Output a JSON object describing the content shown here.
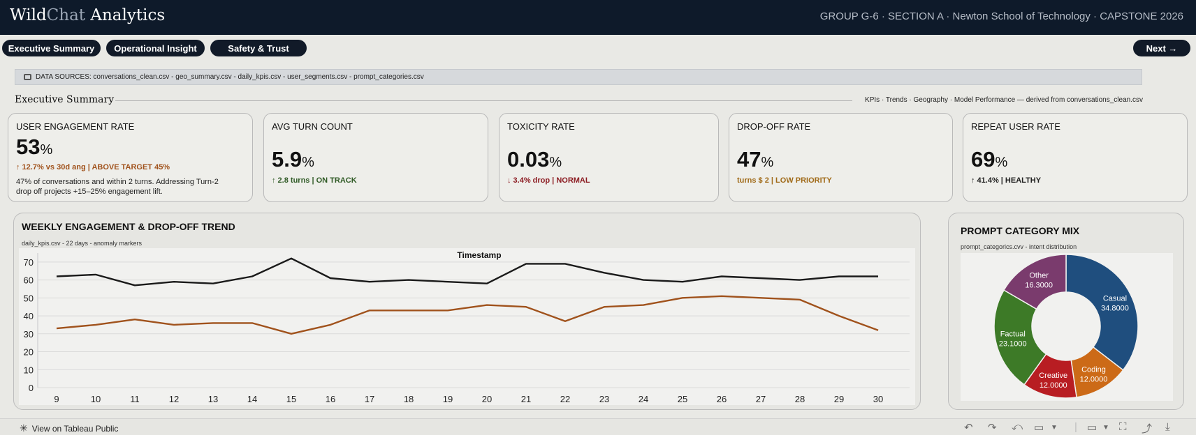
{
  "header": {
    "brand_part1": "Wild",
    "brand_part2": "Chat",
    "brand_part3": " Analytics",
    "meta": "GROUP G-6 · SECTION A · Newton School of Technology · CAPSTONE 2026"
  },
  "nav": {
    "tabs": [
      "Executive Summary",
      "Operational Insight",
      "Safety & Trust"
    ],
    "next_label": "Next →"
  },
  "sources": {
    "text": "DATA SOURCES: conversations_clean.csv - geo_summary.csv - daily_kpis.csv - user_segments.csv - prompt_categories.csv"
  },
  "section": {
    "title": "Executive Summary",
    "subtitle": "KPIs · Trends · Geography · Model Performance — derived from conversations_clean.csv"
  },
  "kpis": [
    {
      "title": "USER ENGAGEMENT RATE",
      "value": "53",
      "unit": "%",
      "delta": "↑ 12.7% vs 30d ang  |  ABOVE TARGET 45%",
      "delta_color": "#a0521c",
      "desc": "47% of conversations and within 2 turns. Addressing Turn-2 drop off projects +15–25% engagement lift."
    },
    {
      "title": "AVG TURN COUNT",
      "value": "5.9",
      "unit": "%",
      "delta": "↑ 2.8 turns  |  ON TRACK",
      "delta_color": "#2f5a25",
      "desc": ""
    },
    {
      "title": "TOXICITY RATE",
      "value": "0.03",
      "unit": "%",
      "delta": "↓ 3.4% drop  |  NORMAL",
      "delta_color": "#8c1c22",
      "desc": ""
    },
    {
      "title": "DROP-OFF RATE",
      "value": "47",
      "unit": "%",
      "delta": "turns $ 2  |  LOW PRIORITY",
      "delta_color": "#a06a18",
      "desc": ""
    },
    {
      "title": "REPEAT USER RATE",
      "value": "69",
      "unit": "%",
      "delta": "↑ 41.4%  |  HEALTHY",
      "delta_color": "#222222",
      "desc": ""
    }
  ],
  "trend_panel": {
    "title": "WEEKLY ENGAGEMENT & DROP-OFF TREND",
    "subtitle": "daily_kpis.csv - 22 days - anomaly markers"
  },
  "pie_panel": {
    "title": "PROMPT CATEGORY MIX",
    "subtitle": "prompt_categorics.cvv - intent distribution"
  },
  "chart_data": [
    {
      "type": "line",
      "title": "Timestamp",
      "x": [
        9,
        10,
        11,
        12,
        13,
        14,
        15,
        16,
        17,
        18,
        19,
        20,
        21,
        22,
        23,
        24,
        25,
        26,
        27,
        28,
        29,
        30
      ],
      "ylim": [
        0,
        75
      ],
      "yticks": [
        0,
        10,
        20,
        30,
        40,
        50,
        60,
        70
      ],
      "grid": true,
      "series": [
        {
          "color": "#1a1a1a",
          "values": [
            62,
            63,
            57,
            59,
            58,
            62,
            72,
            61,
            59,
            60,
            59,
            58,
            69,
            69,
            64,
            60,
            59,
            62,
            61,
            60,
            62,
            62
          ]
        },
        {
          "color": "#a0521c",
          "values": [
            33,
            35,
            38,
            35,
            36,
            36,
            30,
            35,
            43,
            43,
            43,
            46,
            45,
            37,
            45,
            46,
            50,
            51,
            50,
            49,
            40,
            32
          ]
        }
      ]
    },
    {
      "type": "pie",
      "slices": [
        {
          "label": "Casual",
          "value": "34.8000",
          "num": 34.8,
          "color": "#1f4e7e"
        },
        {
          "label": "Coding",
          "value": "12.0000",
          "num": 12.0,
          "color": "#cc6a17"
        },
        {
          "label": "Creative",
          "value": "12.0000",
          "num": 12.0,
          "color": "#b81d22"
        },
        {
          "label": "Factual",
          "value": "23.1000",
          "num": 23.1,
          "color": "#3d7a27"
        },
        {
          "label": "Other",
          "value": "16.3000",
          "num": 16.3,
          "color": "#7a3b6d"
        }
      ]
    }
  ],
  "footer": {
    "link": "View on Tableau Public"
  },
  "toolbar_icons": [
    "undo-icon",
    "redo-icon",
    "revert-icon",
    "pause-icon",
    "dropdown-icon",
    "present-icon",
    "fullscreen-icon",
    "share-icon",
    "download-icon"
  ]
}
